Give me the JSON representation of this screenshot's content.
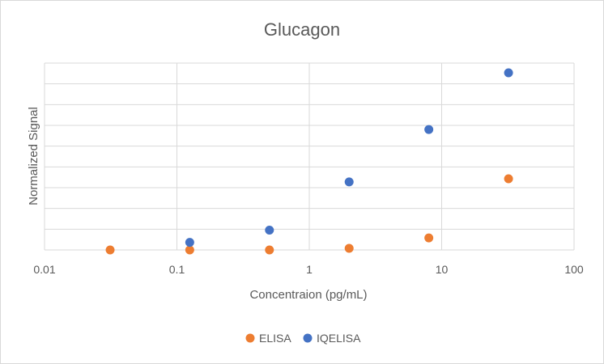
{
  "chart_data": {
    "type": "scatter",
    "title": "Glucagon",
    "xlabel": "Concentraion (pg/mL)",
    "ylabel": "Normalized Signal",
    "x_scale": "log",
    "xlim": [
      0.01,
      100
    ],
    "x_tick_labels": [
      "0.01",
      "0.1",
      "1",
      "10",
      "100"
    ],
    "ylim": [
      0,
      1
    ],
    "y_gridlines": 9,
    "y_tick_labels_shown": false,
    "grid": true,
    "legend_position": "bottom",
    "series": [
      {
        "name": "ELISA",
        "color": "#ED7D31",
        "points": [
          {
            "x": 0.0313,
            "y": 0.0
          },
          {
            "x": 0.125,
            "y": 0.0
          },
          {
            "x": 0.5,
            "y": 0.0
          },
          {
            "x": 2.0,
            "y": 0.009
          },
          {
            "x": 8.0,
            "y": 0.068
          },
          {
            "x": 32.0,
            "y": 0.402
          }
        ]
      },
      {
        "name": "IQELISA",
        "color": "#4472C4",
        "points": [
          {
            "x": 0.125,
            "y": 0.043
          },
          {
            "x": 0.5,
            "y": 0.112
          },
          {
            "x": 2.0,
            "y": 0.384
          },
          {
            "x": 8.0,
            "y": 0.68
          },
          {
            "x": 32.0,
            "y": 1.0
          }
        ]
      }
    ]
  }
}
